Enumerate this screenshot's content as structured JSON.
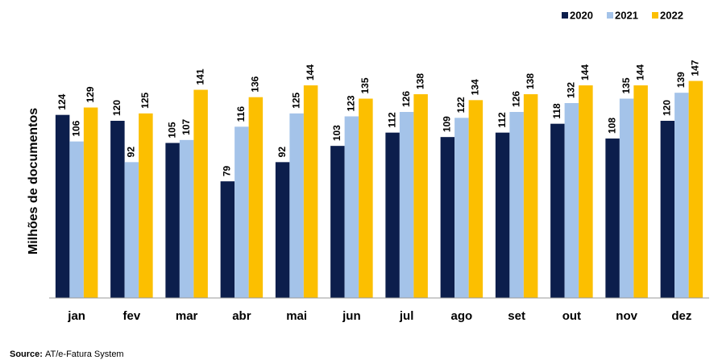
{
  "chart_data": {
    "type": "bar",
    "y_label": "Milhões de documentos",
    "categories": [
      "jan",
      "fev",
      "mar",
      "abr",
      "mai",
      "jun",
      "jul",
      "ago",
      "set",
      "out",
      "nov",
      "dez"
    ],
    "series": [
      {
        "name": "2020",
        "color": "#0c1e4c",
        "values": [
          124,
          120,
          105,
          79,
          92,
          103,
          112,
          109,
          112,
          118,
          108,
          120
        ]
      },
      {
        "name": "2021",
        "color": "#a4c3e9",
        "values": [
          106,
          92,
          107,
          116,
          125,
          123,
          126,
          122,
          126,
          132,
          135,
          139
        ]
      },
      {
        "name": "2022",
        "color": "#fcbf00",
        "values": [
          129,
          125,
          141,
          136,
          144,
          135,
          138,
          134,
          138,
          144,
          144,
          147
        ]
      }
    ],
    "ylim": [
      0,
      180
    ],
    "legend": "top-right",
    "source_label": "Source:",
    "source": "AT/e-Fatura System"
  }
}
